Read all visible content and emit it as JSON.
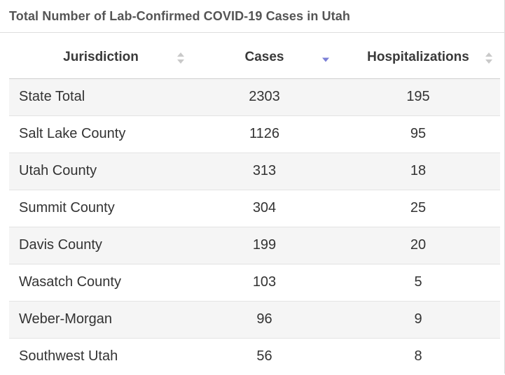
{
  "title": "Total Number of Lab-Confirmed COVID-19 Cases in Utah",
  "colors": {
    "sort_inactive": "#c9c9c9",
    "sort_active": "#7b7fd6",
    "row_alt": "#f5f5f5"
  },
  "chart_data": {
    "type": "table",
    "title": "Total Number of Lab-Confirmed COVID-19 Cases in Utah",
    "columns": [
      "Jurisdiction",
      "Cases",
      "Hospitalizations"
    ],
    "sort": {
      "column": "Cases",
      "direction": "descending"
    },
    "rows": [
      {
        "jurisdiction": "State Total",
        "cases": "2303",
        "hospitalizations": "195"
      },
      {
        "jurisdiction": "Salt Lake County",
        "cases": "1126",
        "hospitalizations": "95"
      },
      {
        "jurisdiction": "Utah County",
        "cases": "313",
        "hospitalizations": "18"
      },
      {
        "jurisdiction": "Summit County",
        "cases": "304",
        "hospitalizations": "25"
      },
      {
        "jurisdiction": "Davis County",
        "cases": "199",
        "hospitalizations": "20"
      },
      {
        "jurisdiction": "Wasatch County",
        "cases": "103",
        "hospitalizations": "5"
      },
      {
        "jurisdiction": "Weber-Morgan",
        "cases": "96",
        "hospitalizations": "9"
      },
      {
        "jurisdiction": "Southwest Utah",
        "cases": "56",
        "hospitalizations": "8"
      }
    ]
  }
}
